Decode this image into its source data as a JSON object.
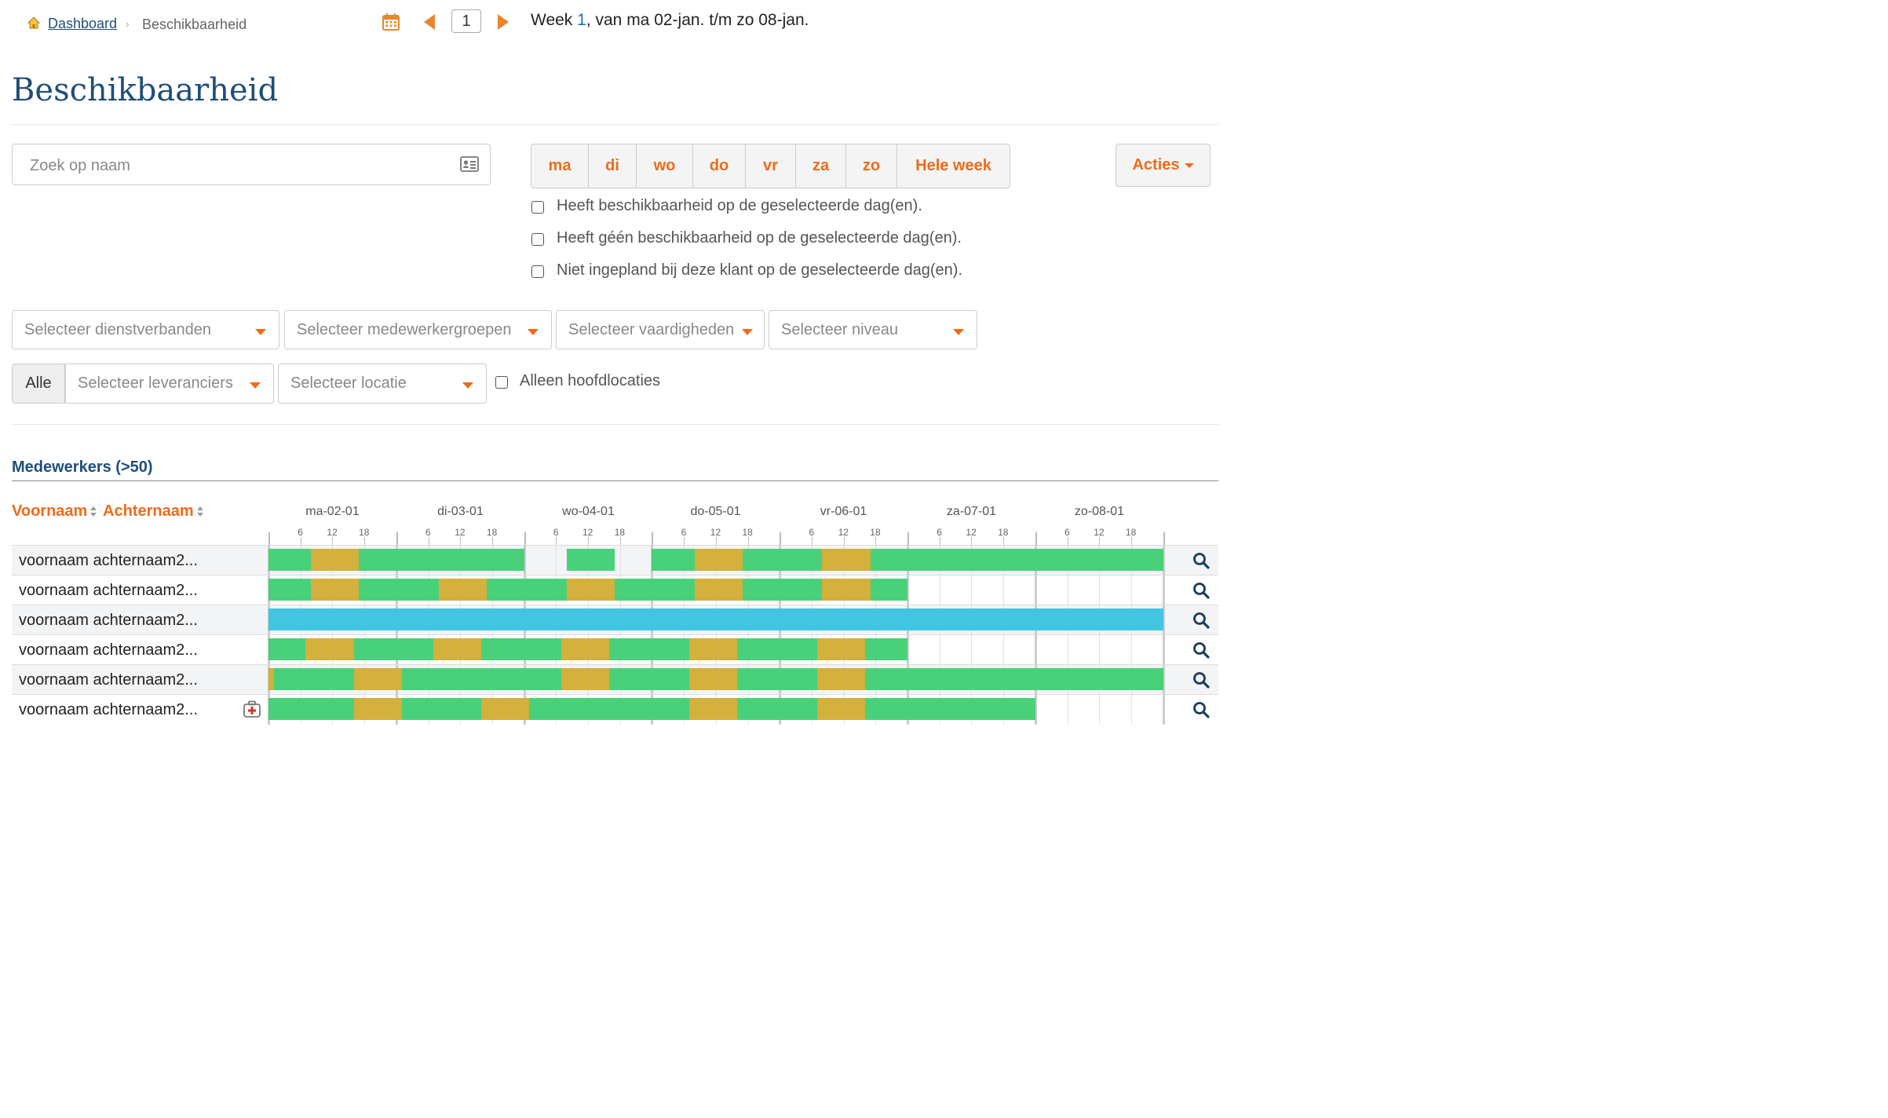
{
  "breadcrumb": {
    "home_label": "Dashboard",
    "separator": "›",
    "current": "Beschikbaarheid"
  },
  "week_nav": {
    "week_value": "1",
    "week_prefix": "Week ",
    "week_number": "1",
    "week_suffix": ", van ma 02-jan. t/m zo 08-jan."
  },
  "page_title": "Beschikbaarheid",
  "search": {
    "placeholder": "Zoek op naam",
    "value": ""
  },
  "day_buttons": [
    {
      "label": "ma"
    },
    {
      "label": "di"
    },
    {
      "label": "wo"
    },
    {
      "label": "do"
    },
    {
      "label": "vr"
    },
    {
      "label": "za"
    },
    {
      "label": "zo"
    },
    {
      "label": "Hele week"
    }
  ],
  "acties_label": "Acties",
  "filters_checkboxes": [
    {
      "label": "Heeft beschikbaarheid op de geselecteerde dag(en).",
      "checked": false
    },
    {
      "label": "Heeft géén beschikbaarheid op de geselecteerde dag(en).",
      "checked": false
    },
    {
      "label": "Niet ingepland bij deze klant op de geselecteerde dag(en).",
      "checked": false
    }
  ],
  "selects": {
    "dienstverbanden": "Selecteer dienstverbanden",
    "medewerkergroepen": "Selecteer medewerkergroepen",
    "vaardigheden": "Selecteer vaardigheden",
    "niveau": "Selecteer niveau",
    "alle": "Alle",
    "leveranciers": "Selecteer leveranciers",
    "locatie": "Selecteer locatie"
  },
  "alleen_hoofdlocaties": {
    "label": "Alleen hoofdlocaties",
    "checked": false
  },
  "section_title": "Medewerkers (>50)",
  "columns": {
    "voornaam": "Voornaam",
    "achternaam": "Achternaam"
  },
  "days": [
    "ma-02-01",
    "di-03-01",
    "wo-04-01",
    "do-05-01",
    "vr-06-01",
    "za-07-01",
    "zo-08-01"
  ],
  "hour_ticks": [
    "6",
    "12",
    "18"
  ],
  "colors": {
    "available": "#48d17a",
    "partial": "#d4b03c",
    "full": "#41c5e0",
    "accent": "#ee6b1b",
    "title": "#1f4e79"
  },
  "employees": [
    {
      "name": "voornaam achternaam2...",
      "medical": false,
      "segments": [
        [
          0,
          8,
          "available"
        ],
        [
          8,
          17,
          "partial"
        ],
        [
          17,
          48,
          "available"
        ],
        [
          56,
          65,
          "available"
        ],
        [
          72,
          80,
          "available"
        ],
        [
          80,
          89,
          "partial"
        ],
        [
          89,
          104,
          "available"
        ],
        [
          104,
          113,
          "partial"
        ],
        [
          113,
          168,
          "available"
        ]
      ]
    },
    {
      "name": "voornaam achternaam2...",
      "medical": false,
      "segments": [
        [
          0,
          8,
          "available"
        ],
        [
          8,
          17,
          "partial"
        ],
        [
          17,
          32,
          "available"
        ],
        [
          32,
          41,
          "partial"
        ],
        [
          41,
          56,
          "available"
        ],
        [
          56,
          65,
          "partial"
        ],
        [
          65,
          80,
          "available"
        ],
        [
          80,
          89,
          "partial"
        ],
        [
          89,
          104,
          "available"
        ],
        [
          104,
          113,
          "partial"
        ],
        [
          113,
          120,
          "available"
        ]
      ]
    },
    {
      "name": "voornaam achternaam2...",
      "medical": false,
      "segments": [
        [
          0,
          168,
          "full"
        ]
      ]
    },
    {
      "name": "voornaam achternaam2...",
      "medical": false,
      "segments": [
        [
          0,
          7,
          "available"
        ],
        [
          7,
          16,
          "partial"
        ],
        [
          16,
          31,
          "available"
        ],
        [
          31,
          40,
          "partial"
        ],
        [
          40,
          55,
          "available"
        ],
        [
          55,
          64,
          "partial"
        ],
        [
          64,
          79,
          "available"
        ],
        [
          79,
          88,
          "partial"
        ],
        [
          88,
          103,
          "available"
        ],
        [
          103,
          112,
          "partial"
        ],
        [
          112,
          120,
          "available"
        ]
      ]
    },
    {
      "name": "voornaam achternaam2...",
      "medical": false,
      "segments": [
        [
          0,
          1,
          "partial"
        ],
        [
          1,
          16,
          "available"
        ],
        [
          16,
          25,
          "partial"
        ],
        [
          25,
          55,
          "available"
        ],
        [
          55,
          64,
          "partial"
        ],
        [
          64,
          79,
          "available"
        ],
        [
          79,
          88,
          "partial"
        ],
        [
          88,
          103,
          "available"
        ],
        [
          103,
          112,
          "partial"
        ],
        [
          112,
          168,
          "available"
        ]
      ]
    },
    {
      "name": "voornaam achternaam2...",
      "medical": true,
      "segments": [
        [
          0,
          16,
          "available"
        ],
        [
          16,
          25,
          "partial"
        ],
        [
          25,
          40,
          "available"
        ],
        [
          40,
          49,
          "partial"
        ],
        [
          49,
          79,
          "available"
        ],
        [
          79,
          88,
          "partial"
        ],
        [
          88,
          103,
          "available"
        ],
        [
          103,
          112,
          "partial"
        ],
        [
          112,
          144,
          "available"
        ]
      ]
    }
  ]
}
